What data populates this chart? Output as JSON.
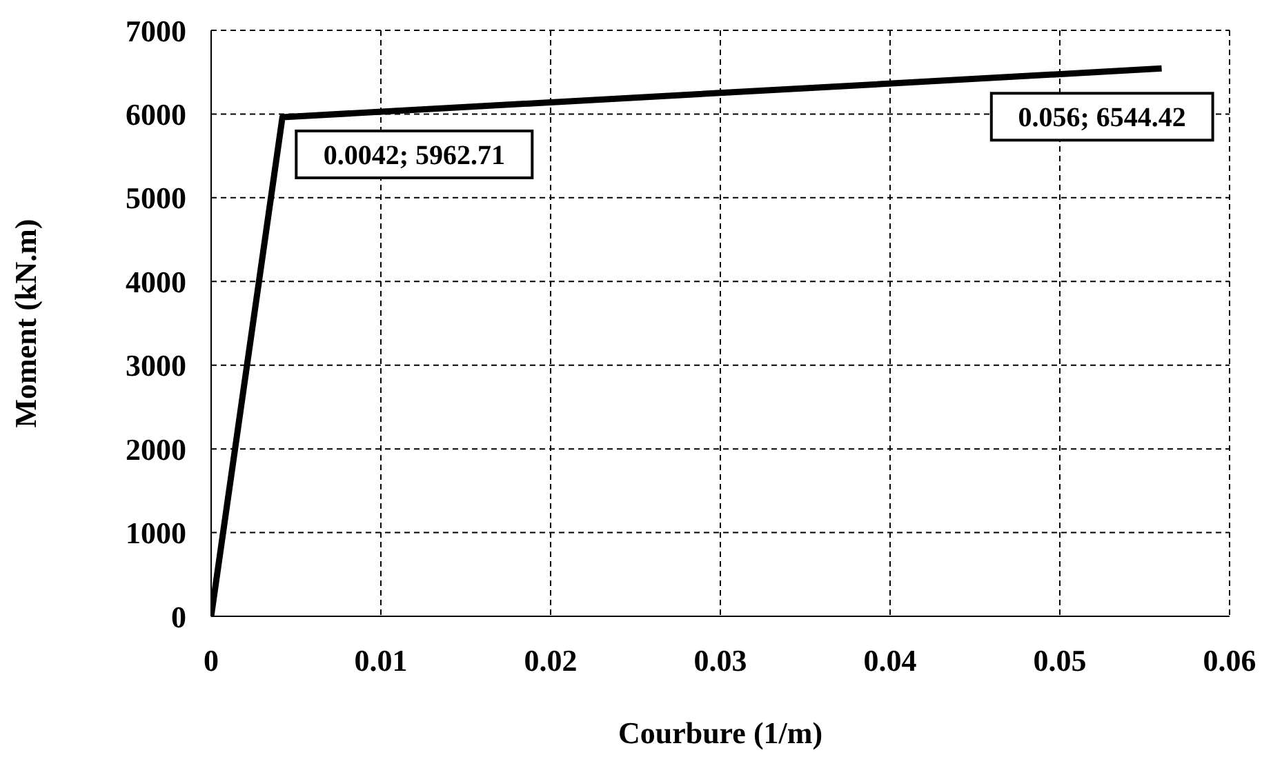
{
  "chart_data": {
    "type": "line",
    "xlabel": "Courbure  (1/m)",
    "ylabel": "Moment (kN.m)",
    "series": [
      {
        "color": "#000000",
        "x": [
          0,
          0.0042,
          0.056
        ],
        "values": [
          0,
          5962.71,
          6544.42
        ]
      }
    ],
    "xlim": [
      0,
      0.06
    ],
    "xticks": [
      0,
      0.01,
      0.02,
      0.03,
      0.04,
      0.05,
      0.06
    ],
    "ylim": [
      0,
      7000
    ],
    "yticks": [
      0,
      1000,
      2000,
      3000,
      4000,
      5000,
      6000,
      7000
    ],
    "grid": true,
    "marker": "none",
    "line_style": "solid",
    "legend": false,
    "annotations": [
      {
        "text": "0.0042; 5962.71",
        "x": 0.0042,
        "y": 5962.71
      },
      {
        "text": "0.056; 6544.42",
        "x": 0.056,
        "y": 6544.42
      }
    ]
  }
}
